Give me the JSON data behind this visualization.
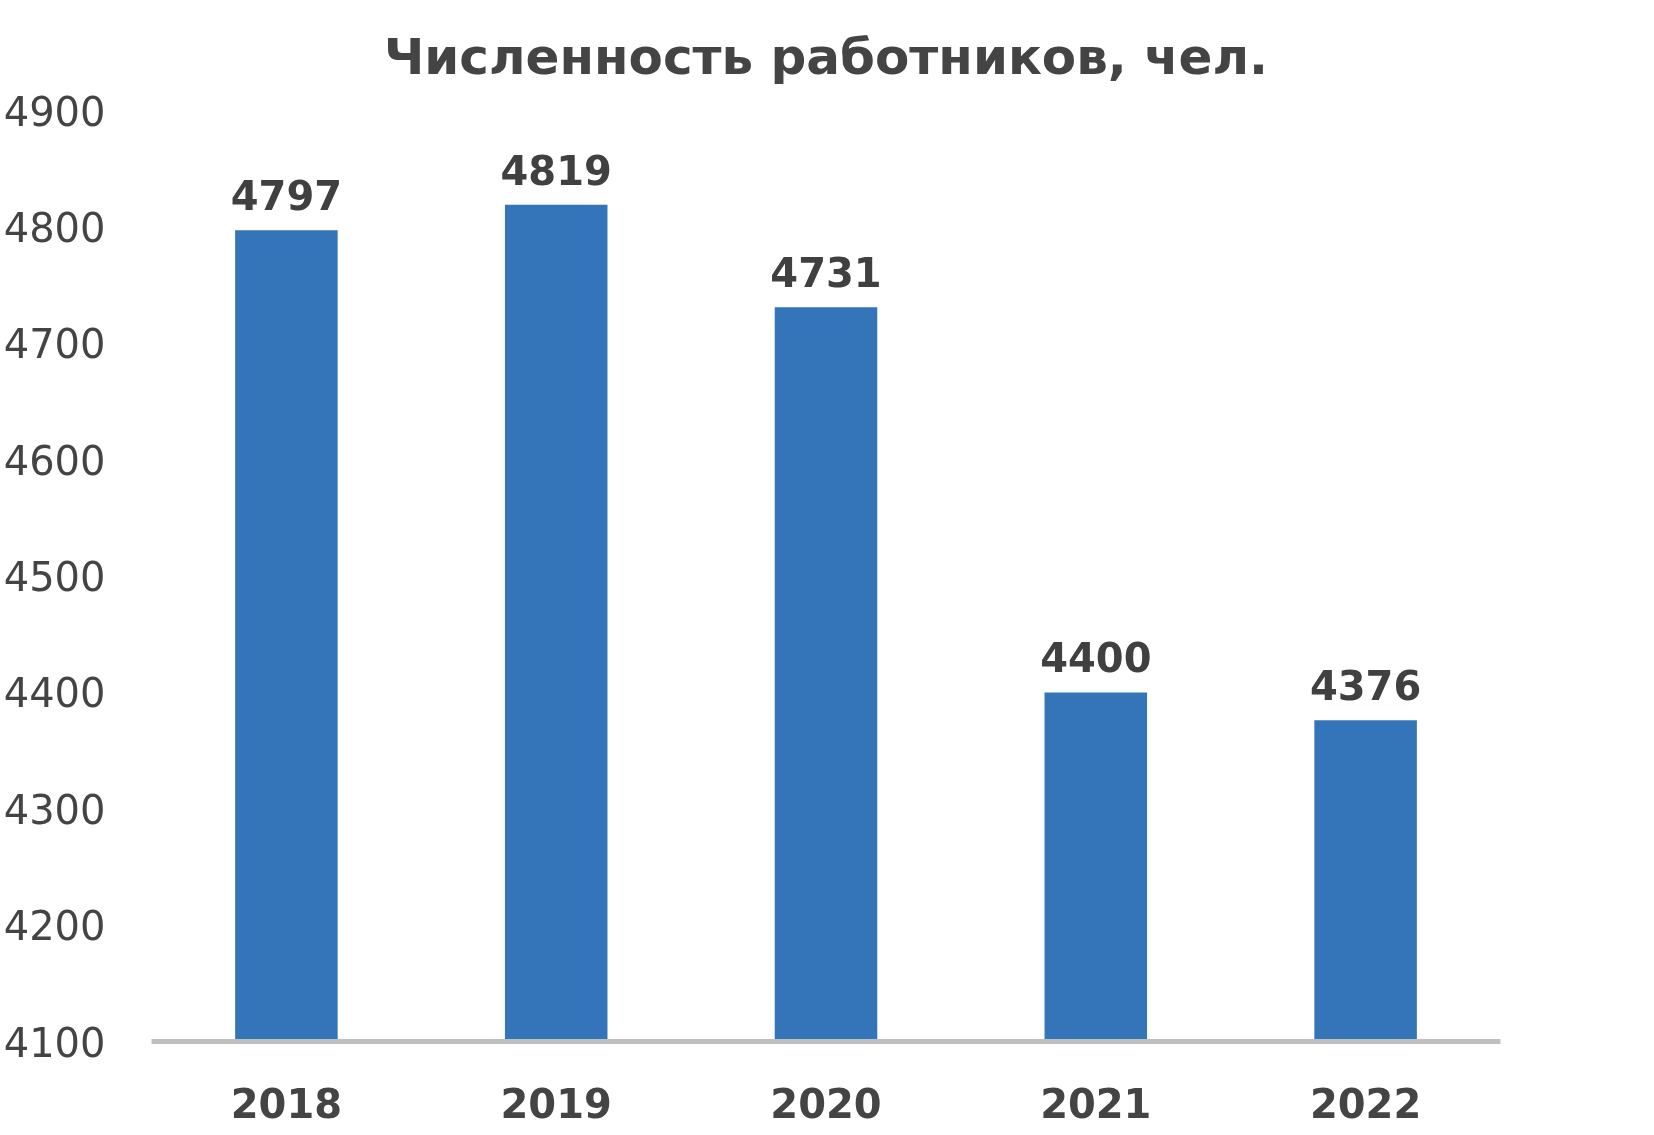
{
  "chart_data": {
    "type": "bar",
    "title": "Численность работников, чел.",
    "categories": [
      "2018",
      "2019",
      "2020",
      "2021",
      "2022"
    ],
    "values": [
      4797,
      4819,
      4731,
      4400,
      4376
    ],
    "color": "#3474b9",
    "ylim": [
      4100,
      4900
    ],
    "yticks": [
      4100,
      4200,
      4300,
      4400,
      4500,
      4600,
      4700,
      4800,
      4900
    ],
    "grid": false,
    "data_labels": true
  }
}
